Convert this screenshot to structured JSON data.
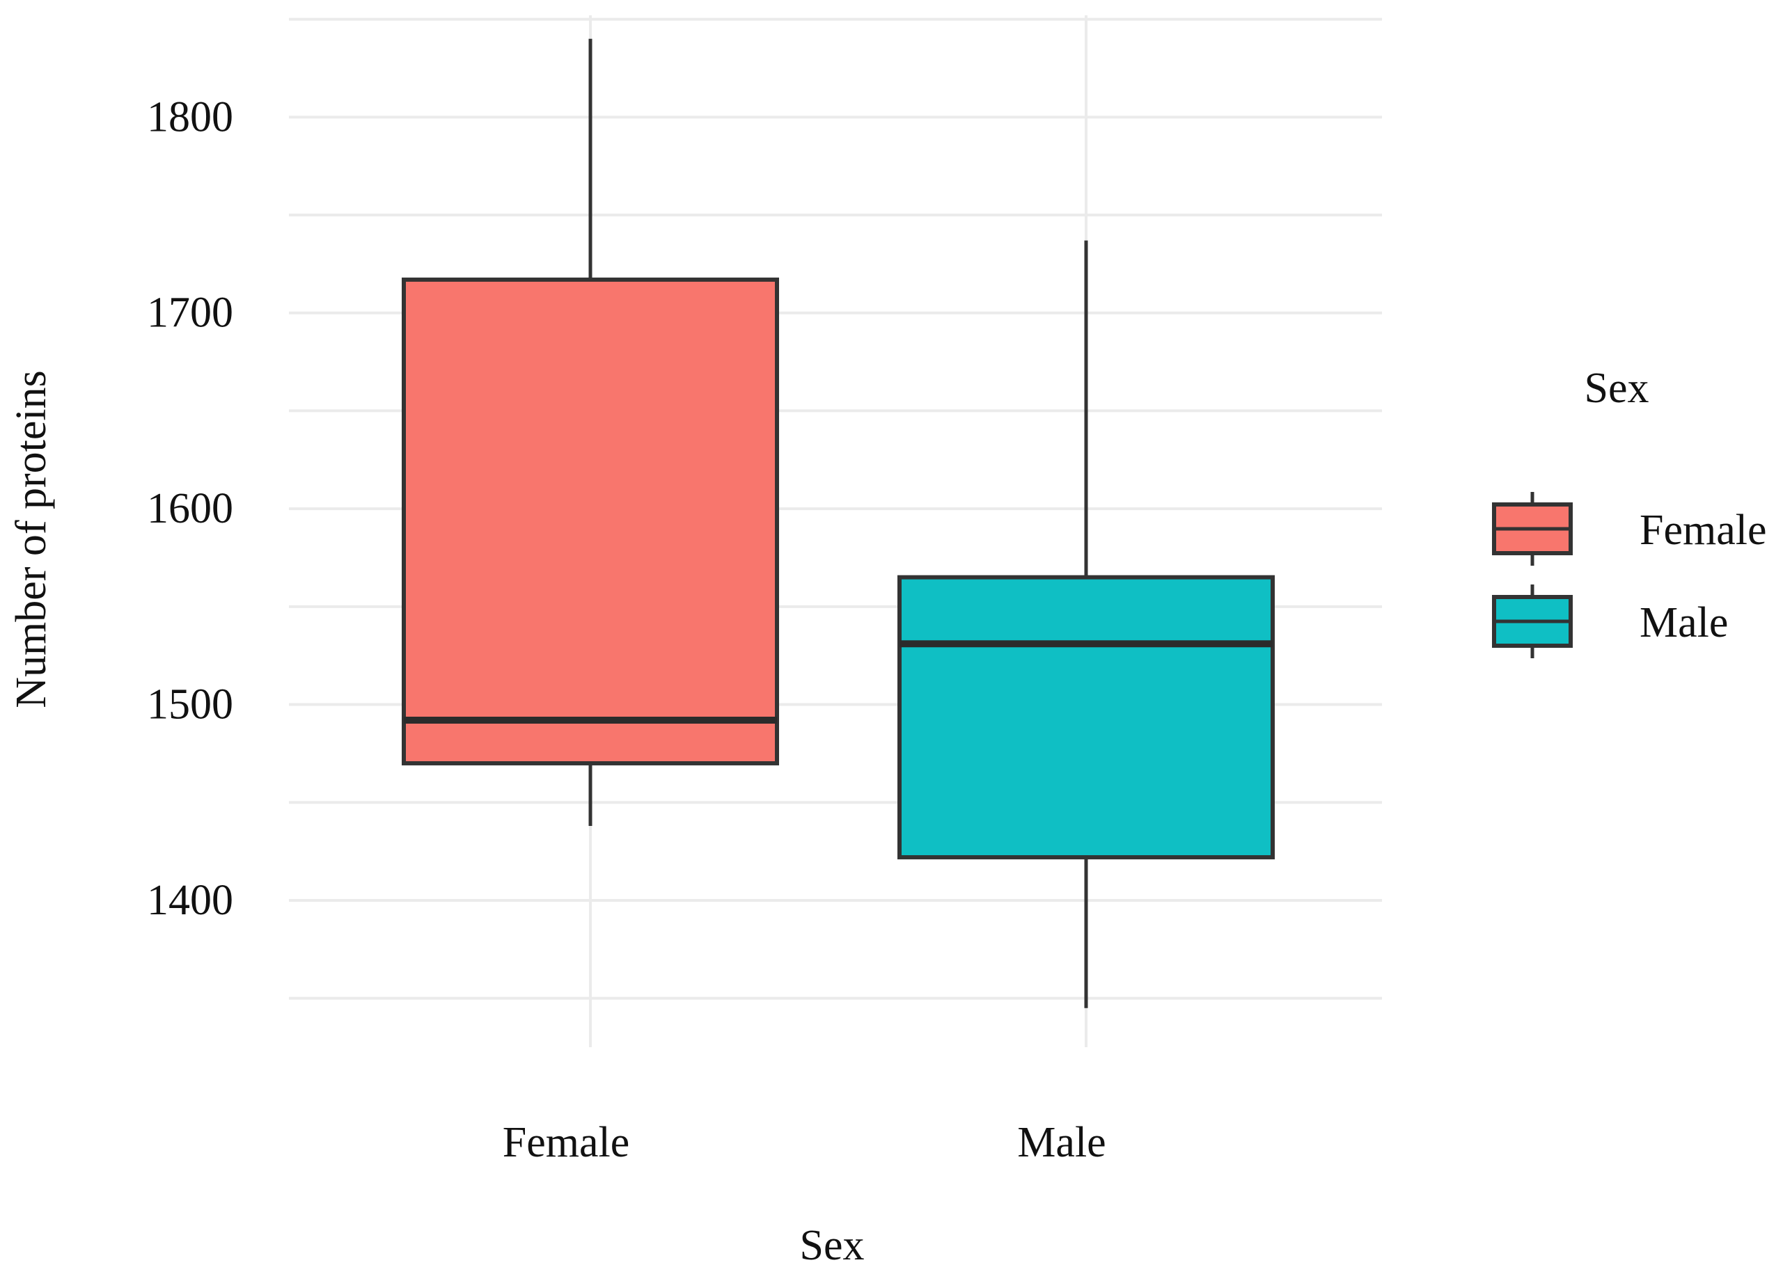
{
  "chart_data": {
    "type": "boxplot",
    "title": "",
    "xlabel": "Sex",
    "ylabel": "Number of proteins",
    "ylim": [
      1325,
      1852
    ],
    "yticks": [
      1400,
      1500,
      1600,
      1700,
      1800
    ],
    "yticks_labels": [
      "1400",
      "1500",
      "1600",
      "1700",
      "1800"
    ],
    "grid": true,
    "categories": [
      "Female",
      "Male"
    ],
    "series": [
      {
        "name": "Female",
        "color": "#f8766d",
        "min": 1438,
        "q1": 1470,
        "median": 1492,
        "q3": 1717,
        "max": 1840
      },
      {
        "name": "Male",
        "color": "#0fbfc4",
        "min": 1345,
        "q1": 1422,
        "median": 1531,
        "q3": 1565,
        "max": 1737
      }
    ],
    "legend": {
      "title": "Sex",
      "position": "right",
      "entries": [
        "Female",
        "Male"
      ]
    }
  }
}
